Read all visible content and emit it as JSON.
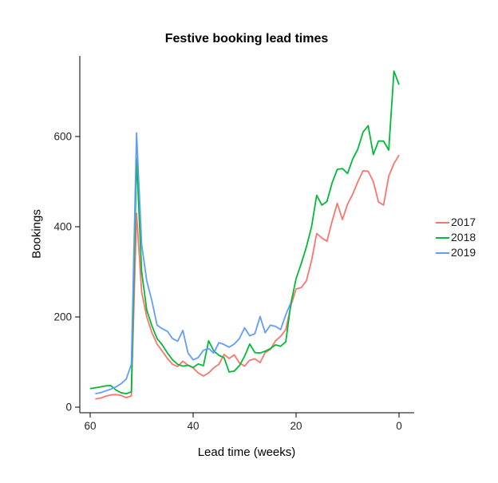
{
  "chart_data": {
    "type": "line",
    "title": "Festive booking lead times",
    "xlabel": "Lead time (weeks)",
    "ylabel": "Bookings",
    "x_reversed": true,
    "grid": false,
    "legend_position": "right",
    "xlim": [
      62,
      -2
    ],
    "ylim": [
      0,
      780
    ],
    "x_ticks": [
      60,
      40,
      20,
      0
    ],
    "y_ticks": [
      0,
      200,
      400,
      600
    ],
    "x": [
      60,
      59,
      58,
      57,
      56,
      55,
      54,
      53,
      52,
      51,
      50,
      49,
      48,
      47,
      46,
      45,
      44,
      43,
      42,
      41,
      40,
      39,
      38,
      37,
      36,
      35,
      34,
      33,
      32,
      31,
      30,
      29,
      28,
      27,
      26,
      25,
      24,
      23,
      22,
      21,
      20,
      19,
      18,
      17,
      16,
      15,
      14,
      13,
      12,
      11,
      10,
      9,
      8,
      7,
      6,
      5,
      4,
      3,
      2,
      1,
      0
    ],
    "series": [
      {
        "name": "2017",
        "color": "#F8766D",
        "values": [
          null,
          18,
          20,
          24,
          27,
          28,
          26,
          21,
          25,
          430,
          255,
          200,
          165,
          140,
          124,
          108,
          95,
          90,
          102,
          93,
          87,
          76,
          69,
          76,
          87,
          95,
          117,
          108,
          116,
          98,
          91,
          104,
          107,
          99,
          121,
          128,
          147,
          157,
          172,
          225,
          262,
          265,
          280,
          325,
          385,
          375,
          368,
          412,
          452,
          416,
          450,
          472,
          500,
          524,
          523,
          500,
          455,
          448,
          512,
          540,
          559
        ]
      },
      {
        "name": "2018",
        "color": "#00BA38",
        "values": [
          41,
          43,
          45,
          47,
          48,
          38,
          32,
          30,
          34,
          553,
          300,
          215,
          180,
          152,
          138,
          120,
          105,
          95,
          91,
          93,
          88,
          96,
          92,
          147,
          125,
          115,
          110,
          78,
          80,
          92,
          113,
          140,
          121,
          120,
          124,
          130,
          138,
          135,
          145,
          230,
          285,
          318,
          355,
          400,
          470,
          448,
          456,
          497,
          527,
          529,
          518,
          550,
          572,
          610,
          624,
          560,
          590,
          590,
          570,
          745,
          715
        ]
      },
      {
        "name": "2019",
        "color": "#619CFF",
        "values": [
          null,
          30,
          32,
          36,
          40,
          45,
          52,
          62,
          95,
          608,
          360,
          280,
          235,
          182,
          174,
          168,
          152,
          146,
          170,
          120,
          105,
          110,
          126,
          130,
          120,
          143,
          139,
          133,
          140,
          152,
          176,
          158,
          163,
          201,
          165,
          182,
          179,
          172,
          205,
          232,
          null,
          null,
          null,
          null,
          null,
          null,
          null,
          null,
          null,
          null,
          null,
          null,
          null,
          null,
          null,
          null,
          null,
          null,
          null,
          null,
          null
        ]
      }
    ]
  }
}
